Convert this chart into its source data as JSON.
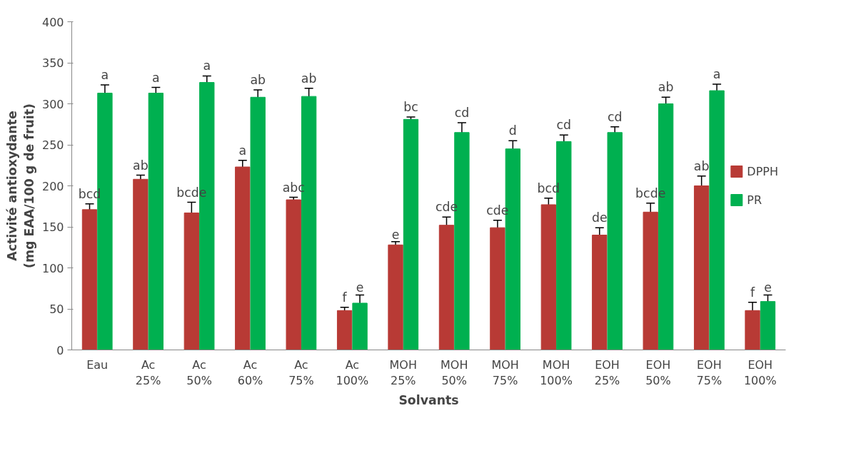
{
  "chart_data": {
    "type": "bar",
    "xlabel": "Solvants",
    "ylabel": "Activité antioxydante\n(mg EAA/100 g de fruit)",
    "categories": [
      "Eau",
      "Ac\n25%",
      "Ac\n50%",
      "Ac\n60%",
      "Ac\n75%",
      "Ac\n100%",
      "MOH\n25%",
      "MOH\n50%",
      "MOH\n75%",
      "MOH\n100%",
      "EOH\n25%",
      "EOH\n50%",
      "EOH\n75%",
      "EOH\n100%"
    ],
    "series": [
      {
        "name": "DPPH",
        "color": "#b83a35",
        "values": [
          171,
          208,
          167,
          223,
          183,
          48,
          128,
          152,
          149,
          177,
          140,
          168,
          200,
          48
        ],
        "errors": [
          7,
          5,
          13,
          8,
          3,
          4,
          4,
          10,
          9,
          8,
          9,
          11,
          12,
          10
        ],
        "value_labels": [
          "bcd",
          "ab",
          "bcde",
          "a",
          "abc",
          "f",
          "e",
          "cde",
          "cde",
          "bcd",
          "de",
          "bcde",
          "ab",
          "f"
        ]
      },
      {
        "name": "PR",
        "color": "#00b050",
        "values": [
          313,
          313,
          326,
          308,
          309,
          57,
          281,
          265,
          245,
          254,
          265,
          300,
          316,
          59
        ],
        "errors": [
          10,
          7,
          8,
          9,
          10,
          10,
          3,
          12,
          10,
          8,
          7,
          8,
          8,
          8
        ],
        "value_labels": [
          "a",
          "a",
          "a",
          "ab",
          "ab",
          "e",
          "bc",
          "cd",
          "d",
          "cd",
          "cd",
          "ab",
          "a",
          "e"
        ]
      }
    ],
    "ylim": [
      0,
      400
    ],
    "yticks": [
      0,
      50,
      100,
      150,
      200,
      250,
      300,
      350,
      400
    ],
    "grid": false,
    "legend": "right"
  }
}
